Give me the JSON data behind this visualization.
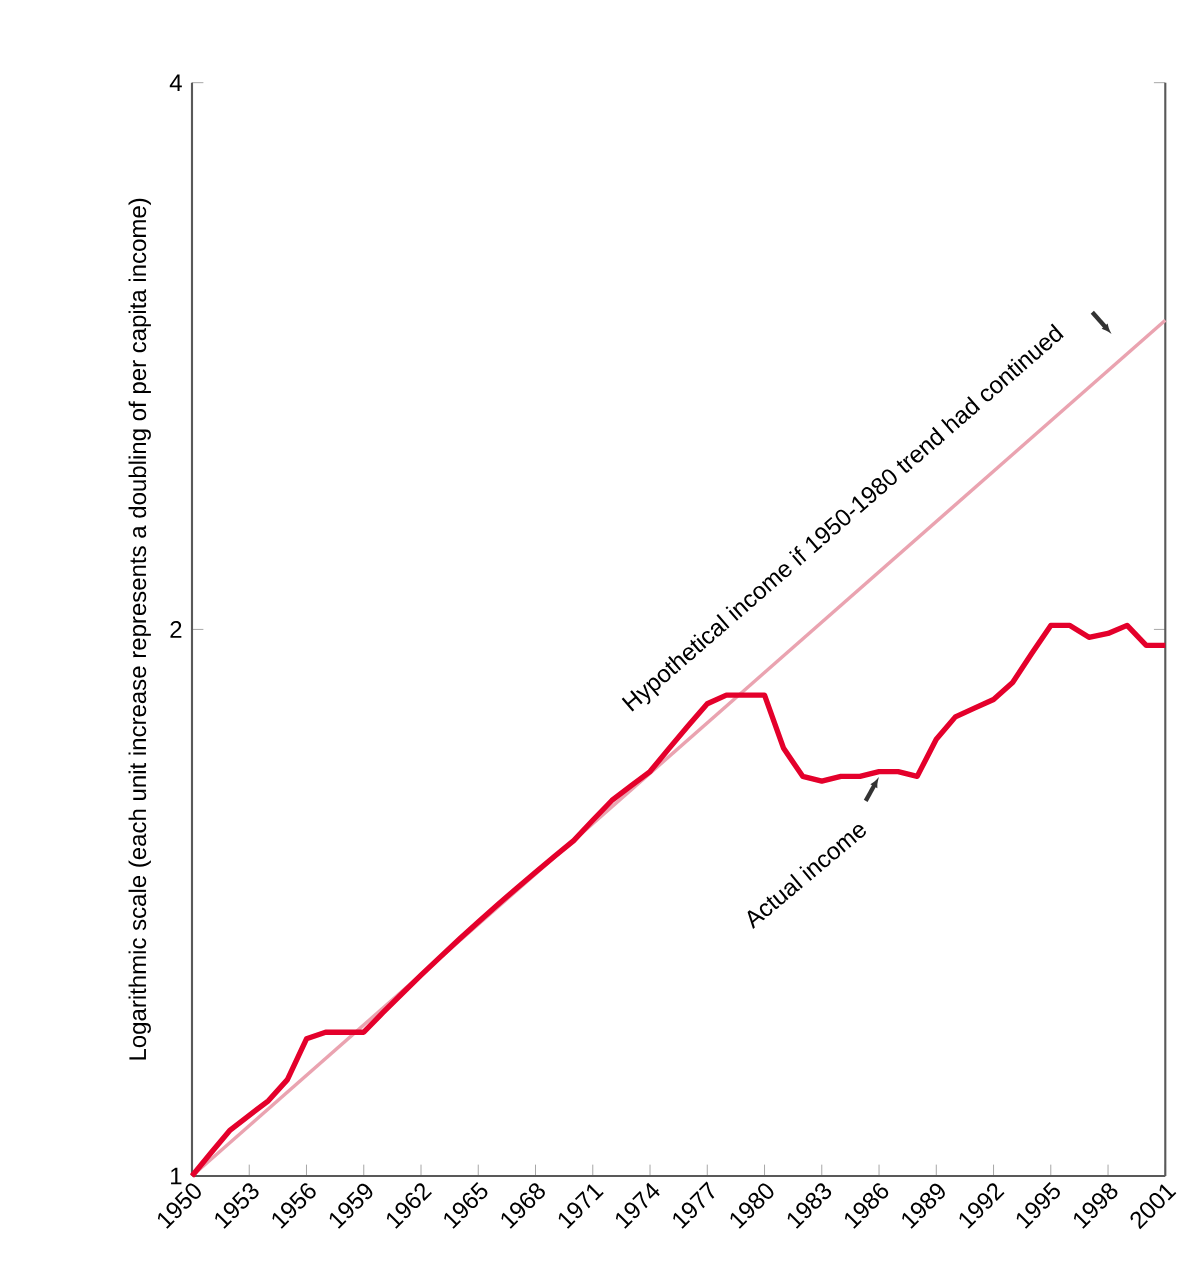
{
  "chart_data": {
    "type": "line",
    "ylabel": "Logarithmic scale (each unit increase represents a doubling of per capita income)",
    "log": "y",
    "grid": false,
    "marker": "none",
    "line_style": "solid",
    "xlim": [
      1950,
      2001
    ],
    "xticks": [
      1950,
      1953,
      1956,
      1959,
      1962,
      1965,
      1968,
      1971,
      1974,
      1977,
      1980,
      1983,
      1986,
      1989,
      1992,
      1995,
      1998,
      2001
    ],
    "ylim": [
      1,
      4
    ],
    "yticks": [
      1,
      2,
      4
    ],
    "series": [
      {
        "color": "#eaa3b0",
        "x": [
          1950,
          2001
        ],
        "values": [
          1,
          2.96
        ]
      },
      {
        "color": "#e4002b",
        "x": [
          1950,
          1951,
          1952,
          1953,
          1954,
          1955,
          1956,
          1957,
          1958,
          1959,
          1960,
          1961,
          1962,
          1963,
          1964,
          1965,
          1966,
          1967,
          1968,
          1969,
          1970,
          1971,
          1972,
          1973,
          1974,
          1975,
          1976,
          1977,
          1978,
          1979,
          1980,
          1981,
          1982,
          1983,
          1984,
          1985,
          1986,
          1987,
          1988,
          1989,
          1990,
          1991,
          1992,
          1993,
          1994,
          1995,
          1996,
          1997,
          1998,
          1999,
          2000,
          2001
        ],
        "values": [
          1.0,
          1.03,
          1.06,
          1.08,
          1.1,
          1.13,
          1.19,
          1.2,
          1.2,
          1.2,
          1.23,
          1.26,
          1.29,
          1.32,
          1.35,
          1.38,
          1.41,
          1.44,
          1.47,
          1.5,
          1.53,
          1.57,
          1.61,
          1.64,
          1.67,
          1.72,
          1.77,
          1.82,
          1.84,
          1.84,
          1.84,
          1.72,
          1.66,
          1.65,
          1.66,
          1.66,
          1.67,
          1.67,
          1.66,
          1.74,
          1.79,
          1.81,
          1.83,
          1.87,
          1.94,
          2.01,
          2.01,
          1.98,
          1.99,
          2.01,
          1.96,
          1.96
        ]
      }
    ],
    "annotations": [
      "Hypothetical income if 1950-1980 trend had continued",
      {
        "text": "Actual income",
        "x": 1986,
        "y": 1.67
      }
    ]
  }
}
